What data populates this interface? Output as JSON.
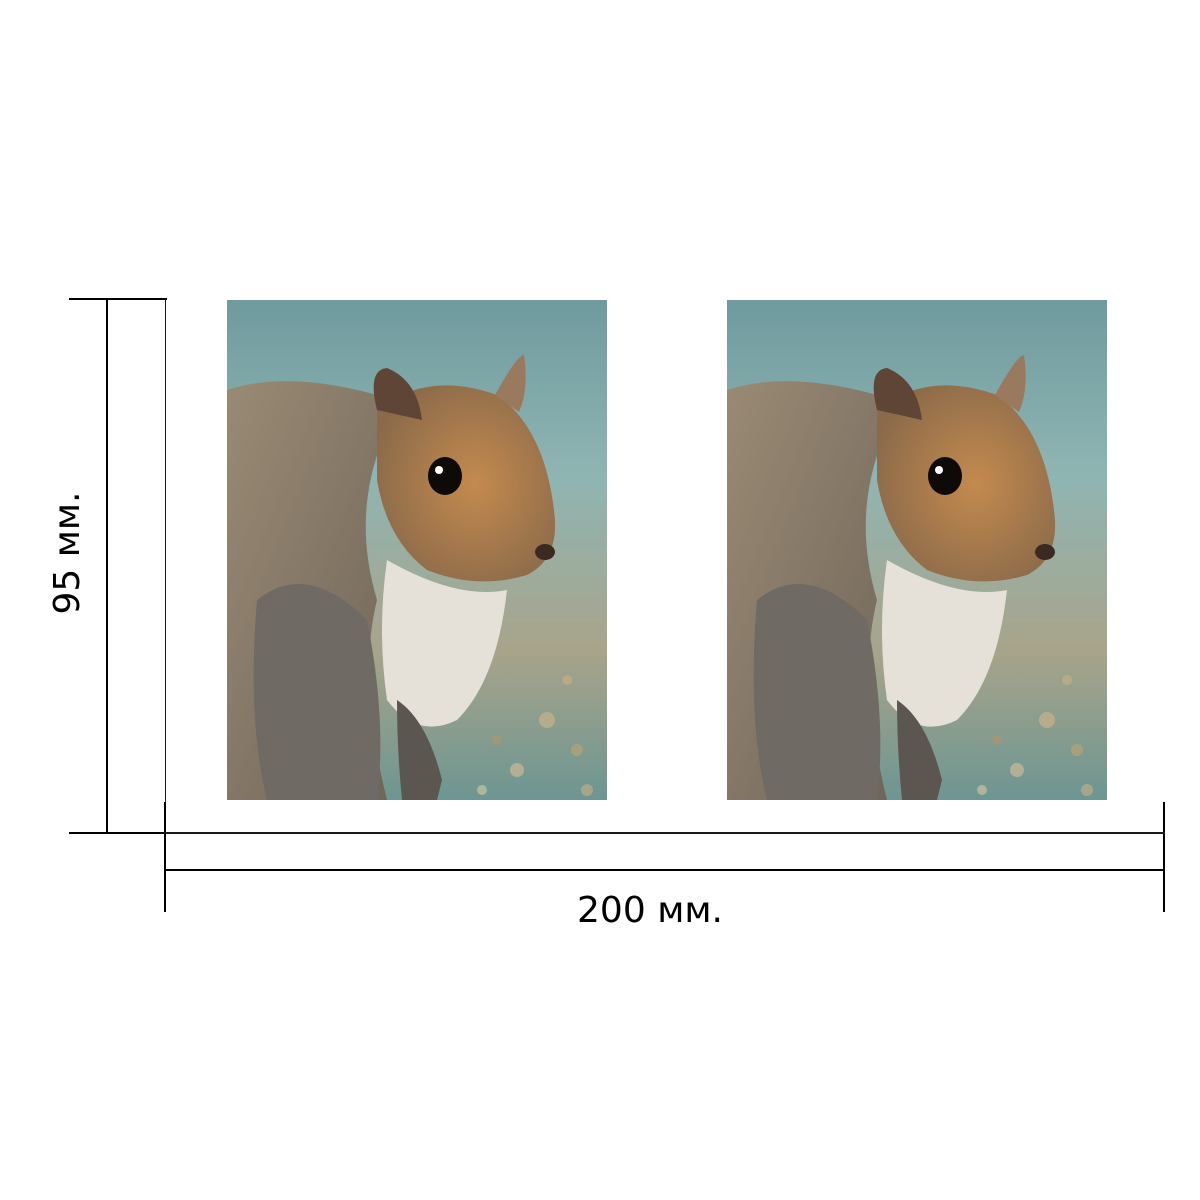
{
  "dimensions": {
    "width_label": "200 мм.",
    "height_label": "95 мм."
  },
  "photos": [
    {
      "subject": "squirrel-photo"
    },
    {
      "subject": "squirrel-photo"
    }
  ],
  "colors": {
    "background_teal": "#7fa9a8",
    "fur_gray": "#8a7c6c",
    "face_orange": "#b07a45",
    "chest_white": "#e8e4dc"
  }
}
